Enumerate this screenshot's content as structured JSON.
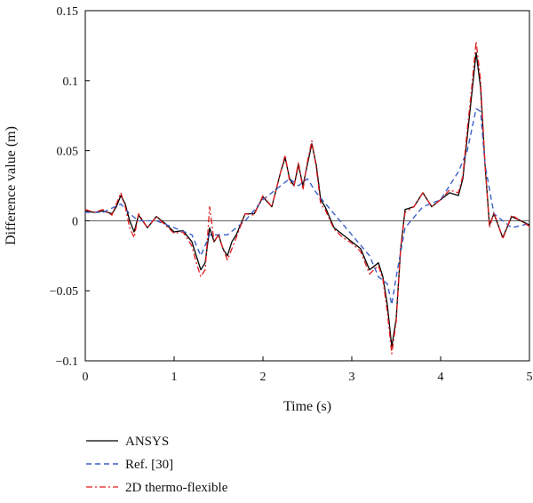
{
  "chart_data": {
    "type": "line",
    "title": "",
    "xlabel": "Time (s)",
    "ylabel": "Difference value (m)",
    "xlim": [
      0,
      5
    ],
    "ylim": [
      -0.1,
      0.15
    ],
    "x_ticks": [
      0,
      1,
      2,
      3,
      4,
      5
    ],
    "x_tick_labels": [
      "0",
      "1",
      "2",
      "3",
      "4",
      "5"
    ],
    "y_ticks": [
      -0.1,
      -0.05,
      0,
      0.05,
      0.1,
      0.15
    ],
    "y_tick_labels": [
      "−0.1",
      "−0.05",
      "0",
      "0.05",
      "0.1",
      "0.15"
    ],
    "grid": false,
    "legend_position": "below",
    "series": [
      {
        "name": "ANSYS",
        "color": "#000000",
        "dash": "solid",
        "x": [
          0,
          0.1,
          0.2,
          0.3,
          0.35,
          0.4,
          0.45,
          0.5,
          0.55,
          0.6,
          0.7,
          0.8,
          0.9,
          1.0,
          1.1,
          1.2,
          1.25,
          1.3,
          1.35,
          1.4,
          1.45,
          1.5,
          1.55,
          1.6,
          1.65,
          1.7,
          1.8,
          1.9,
          2.0,
          2.1,
          2.2,
          2.25,
          2.3,
          2.35,
          2.4,
          2.45,
          2.5,
          2.55,
          2.6,
          2.65,
          2.7,
          2.8,
          2.9,
          3.0,
          3.1,
          3.2,
          3.3,
          3.35,
          3.4,
          3.45,
          3.5,
          3.55,
          3.6,
          3.7,
          3.8,
          3.9,
          4.0,
          4.1,
          4.2,
          4.25,
          4.3,
          4.35,
          4.4,
          4.45,
          4.5,
          4.55,
          4.6,
          4.7,
          4.8,
          4.9,
          5.0
        ],
        "y": [
          0.007,
          0.006,
          0.007,
          0.005,
          0.01,
          0.018,
          0.012,
          0.0,
          -0.008,
          0.004,
          -0.005,
          0.003,
          -0.002,
          -0.008,
          -0.007,
          -0.015,
          -0.025,
          -0.035,
          -0.03,
          -0.005,
          -0.015,
          -0.01,
          -0.02,
          -0.025,
          -0.015,
          -0.01,
          0.005,
          0.005,
          0.017,
          0.01,
          0.035,
          0.045,
          0.03,
          0.025,
          0.04,
          0.025,
          0.04,
          0.055,
          0.04,
          0.015,
          0.01,
          -0.005,
          -0.01,
          -0.015,
          -0.02,
          -0.035,
          -0.03,
          -0.04,
          -0.06,
          -0.09,
          -0.07,
          -0.02,
          0.008,
          0.01,
          0.02,
          0.01,
          0.015,
          0.02,
          0.018,
          0.03,
          0.06,
          0.09,
          0.12,
          0.095,
          0.04,
          -0.003,
          0.005,
          -0.012,
          0.003,
          0.0,
          -0.003
        ]
      },
      {
        "name": "Ref. [30]",
        "color": "#3a5fc8",
        "dash": "dashed",
        "x": [
          0,
          0.2,
          0.4,
          0.5,
          0.6,
          0.8,
          1.0,
          1.2,
          1.3,
          1.4,
          1.6,
          1.8,
          2.0,
          2.2,
          2.3,
          2.4,
          2.5,
          2.6,
          2.8,
          3.0,
          3.2,
          3.3,
          3.4,
          3.45,
          3.5,
          3.6,
          3.8,
          4.0,
          4.1,
          4.2,
          4.3,
          4.4,
          4.45,
          4.5,
          4.6,
          4.8,
          5.0
        ],
        "y": [
          0.006,
          0.006,
          0.012,
          0.005,
          0.0,
          0.0,
          -0.005,
          -0.01,
          -0.025,
          -0.01,
          -0.01,
          0.0,
          0.015,
          0.025,
          0.03,
          0.025,
          0.03,
          0.02,
          0.005,
          -0.01,
          -0.025,
          -0.04,
          -0.045,
          -0.06,
          -0.04,
          -0.005,
          0.01,
          0.015,
          0.025,
          0.035,
          0.05,
          0.08,
          0.078,
          0.04,
          0.005,
          -0.005,
          -0.002
        ]
      },
      {
        "name": "2D thermo-flexible",
        "color": "#e41a1c",
        "dash": "dashdot",
        "x": [
          0,
          0.1,
          0.2,
          0.3,
          0.35,
          0.4,
          0.45,
          0.5,
          0.55,
          0.6,
          0.7,
          0.8,
          0.9,
          1.0,
          1.1,
          1.2,
          1.25,
          1.3,
          1.35,
          1.4,
          1.45,
          1.5,
          1.55,
          1.6,
          1.65,
          1.7,
          1.8,
          1.9,
          2.0,
          2.1,
          2.2,
          2.25,
          2.3,
          2.35,
          2.4,
          2.45,
          2.5,
          2.55,
          2.6,
          2.65,
          2.7,
          2.8,
          2.9,
          3.0,
          3.1,
          3.2,
          3.3,
          3.35,
          3.4,
          3.45,
          3.5,
          3.55,
          3.6,
          3.7,
          3.8,
          3.9,
          4.0,
          4.1,
          4.2,
          4.25,
          4.3,
          4.35,
          4.4,
          4.45,
          4.5,
          4.55,
          4.6,
          4.7,
          4.8,
          4.9,
          5.0
        ],
        "y": [
          0.008,
          0.006,
          0.008,
          0.004,
          0.012,
          0.02,
          0.01,
          -0.005,
          -0.012,
          0.005,
          -0.005,
          0.003,
          -0.003,
          -0.009,
          -0.008,
          -0.018,
          -0.03,
          -0.04,
          -0.035,
          0.01,
          -0.015,
          -0.01,
          -0.02,
          -0.028,
          -0.02,
          -0.012,
          0.005,
          0.004,
          0.018,
          0.01,
          0.035,
          0.047,
          0.028,
          0.025,
          0.042,
          0.022,
          0.042,
          0.057,
          0.038,
          0.012,
          0.008,
          -0.006,
          -0.012,
          -0.016,
          -0.022,
          -0.038,
          -0.032,
          -0.042,
          -0.065,
          -0.095,
          -0.072,
          -0.02,
          0.006,
          0.01,
          0.02,
          0.01,
          0.015,
          0.022,
          0.02,
          0.032,
          0.065,
          0.095,
          0.128,
          0.1,
          0.04,
          -0.005,
          0.006,
          -0.013,
          0.004,
          0.0,
          -0.004
        ]
      }
    ]
  }
}
